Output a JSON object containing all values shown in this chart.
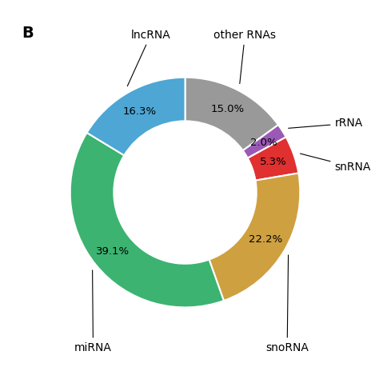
{
  "title": "B",
  "slices": [
    {
      "label": "other RNAs",
      "pct": 15.0,
      "color": "#999999"
    },
    {
      "label": "rRNA",
      "pct": 2.0,
      "color": "#9B59B6"
    },
    {
      "label": "snRNA",
      "pct": 5.3,
      "color": "#E03030"
    },
    {
      "label": "snoRNA",
      "pct": 22.2,
      "color": "#CFA040"
    },
    {
      "label": "miRNA",
      "pct": 39.1,
      "color": "#3CB371"
    },
    {
      "label": "lncRNA",
      "pct": 16.3,
      "color": "#4DA6D4"
    }
  ],
  "pct_label_fontsize": 9.5,
  "outer_label_fontsize": 10,
  "title_fontsize": 14,
  "donut_width": 0.38,
  "start_angle": 90,
  "background_color": "#ffffff",
  "label_positions": {
    "lncRNA": {
      "xt": -0.3,
      "yt": 1.32,
      "ha": "center",
      "va": "bottom"
    },
    "other RNAs": {
      "xt": 0.52,
      "yt": 1.32,
      "ha": "center",
      "va": "bottom"
    },
    "rRNA": {
      "xt": 1.3,
      "yt": 0.6,
      "ha": "left",
      "va": "center"
    },
    "snRNA": {
      "xt": 1.3,
      "yt": 0.22,
      "ha": "left",
      "va": "center"
    },
    "snoRNA": {
      "xt": 0.7,
      "yt": -1.3,
      "ha": "left",
      "va": "top"
    },
    "miRNA": {
      "xt": -0.8,
      "yt": -1.3,
      "ha": "center",
      "va": "top"
    }
  }
}
